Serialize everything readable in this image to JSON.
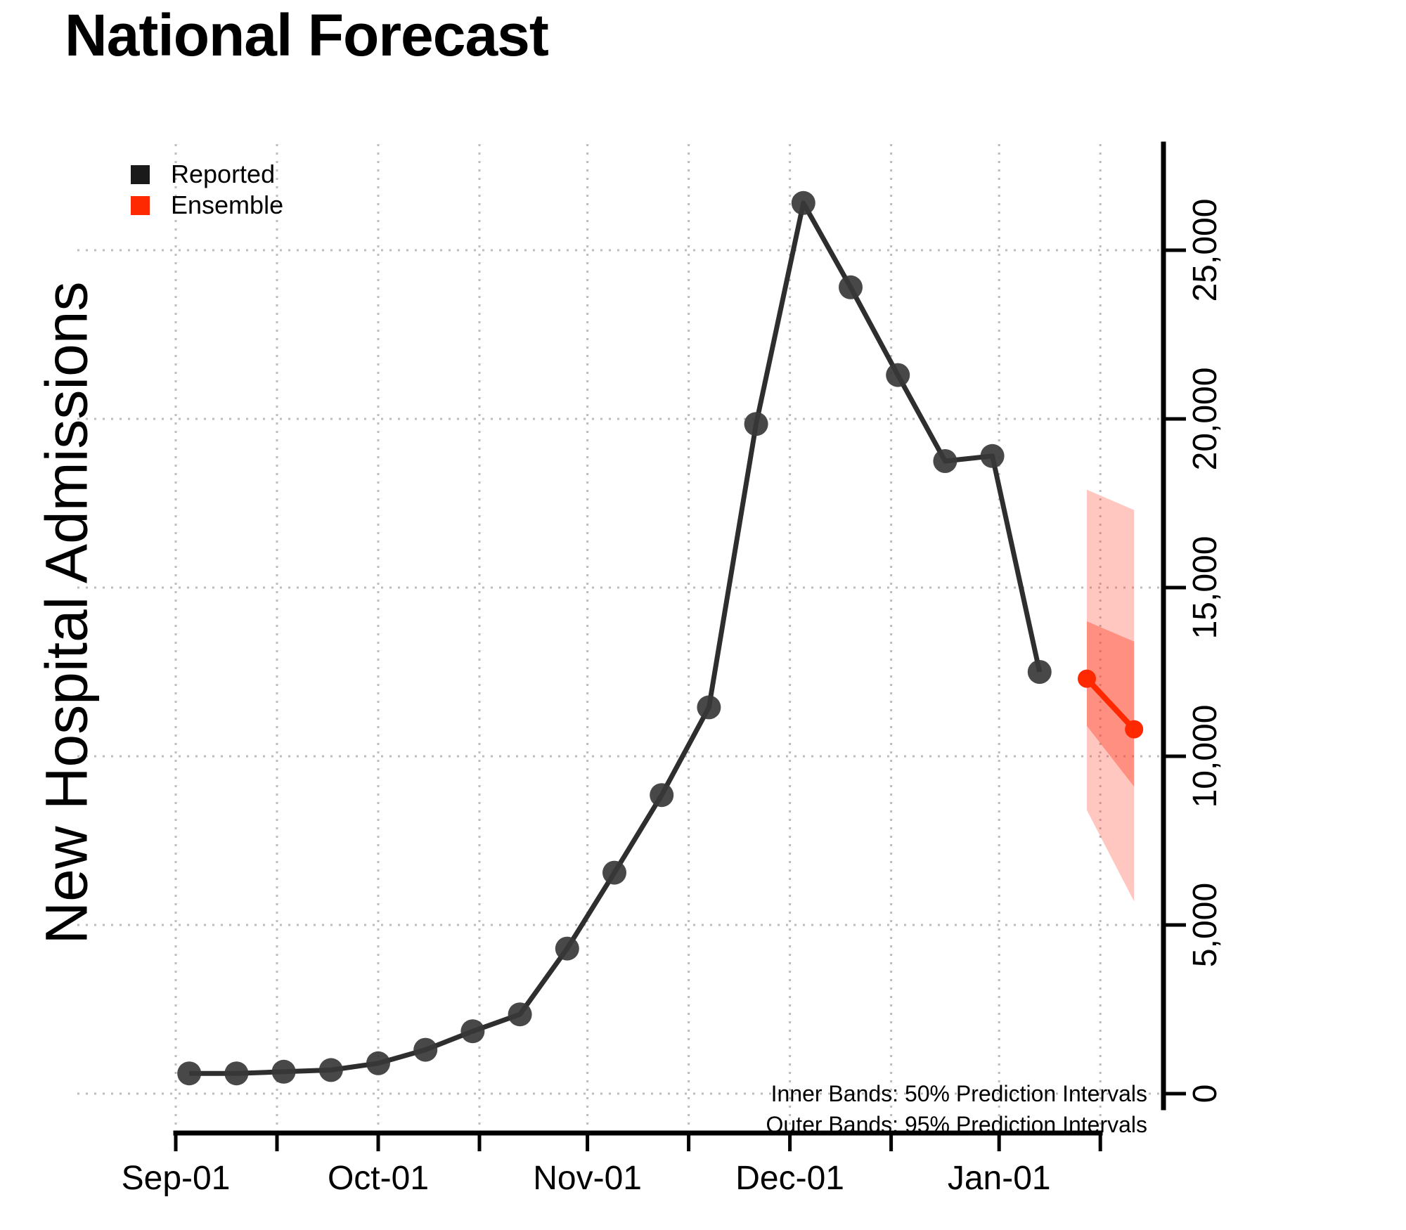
{
  "title": "National Forecast",
  "y_axis_label": "New Hospital Admissions",
  "legend": {
    "items": [
      {
        "label": "Reported",
        "color": "#1a1a1a"
      },
      {
        "label": "Ensemble",
        "color": "#fe2900"
      }
    ]
  },
  "annotations": {
    "inner": "Inner Bands: 50% Prediction Intervals",
    "outer": "Outer Bands: 95% Prediction Intervals"
  },
  "chart_data": {
    "type": "line",
    "title": "National Forecast",
    "ylabel": "New Hospital Admissions",
    "grid": true,
    "legend_position": "top-left",
    "x_range": [
      "Sep-01",
      "Jan-16"
    ],
    "ylim": [
      0,
      27500
    ],
    "y_ticks": [
      {
        "value": 0,
        "label": "0"
      },
      {
        "value": 5000,
        "label": "5,000"
      },
      {
        "value": 10000,
        "label": "10,000"
      },
      {
        "value": 15000,
        "label": "15,000"
      },
      {
        "value": 20000,
        "label": "20,000"
      },
      {
        "value": 25000,
        "label": "25,000"
      }
    ],
    "x_ticks": [
      {
        "date": "Sep-01",
        "label": "Sep-01"
      },
      {
        "date": "Sep-16",
        "label": ""
      },
      {
        "date": "Oct-01",
        "label": "Oct-01"
      },
      {
        "date": "Oct-16",
        "label": ""
      },
      {
        "date": "Nov-01",
        "label": "Nov-01"
      },
      {
        "date": "Nov-16",
        "label": ""
      },
      {
        "date": "Dec-01",
        "label": "Dec-01"
      },
      {
        "date": "Dec-16",
        "label": ""
      },
      {
        "date": "Jan-01",
        "label": "Jan-01"
      },
      {
        "date": "Jan-16",
        "label": ""
      }
    ],
    "colors": {
      "reported_line": "#2e2e2e",
      "reported_point": "#383838",
      "ensemble": "#fe2900",
      "band_outer": "rgba(255,70,45,0.30)",
      "band_inner": "rgba(252,60,35,0.40)",
      "grid": "#bcbcbc"
    },
    "series": [
      {
        "name": "Reported",
        "marker": "circle",
        "points": [
          {
            "date": "Sep-03",
            "value": 600
          },
          {
            "date": "Sep-10",
            "value": 600
          },
          {
            "date": "Sep-17",
            "value": 650
          },
          {
            "date": "Sep-24",
            "value": 700
          },
          {
            "date": "Oct-01",
            "value": 900
          },
          {
            "date": "Oct-08",
            "value": 1300
          },
          {
            "date": "Oct-15",
            "value": 1850
          },
          {
            "date": "Oct-22",
            "value": 2350
          },
          {
            "date": "Oct-29",
            "value": 4300
          },
          {
            "date": "Nov-05",
            "value": 6550
          },
          {
            "date": "Nov-12",
            "value": 8850
          },
          {
            "date": "Nov-19",
            "value": 11450
          },
          {
            "date": "Nov-26",
            "value": 19850
          },
          {
            "date": "Dec-03",
            "value": 26400
          },
          {
            "date": "Dec-10",
            "value": 23900
          },
          {
            "date": "Dec-17",
            "value": 21300
          },
          {
            "date": "Dec-24",
            "value": 18750
          },
          {
            "date": "Dec-31",
            "value": 18900
          },
          {
            "date": "Jan-07",
            "value": 12500
          }
        ]
      },
      {
        "name": "Ensemble",
        "marker": "circle",
        "points": [
          {
            "date": "Jan-14",
            "value": 12300,
            "pi50": [
              10900,
              14000
            ],
            "pi95": [
              8400,
              17900
            ]
          },
          {
            "date": "Jan-21",
            "value": 10800,
            "pi50": [
              9100,
              13400
            ],
            "pi95": [
              5700,
              17300
            ]
          }
        ]
      }
    ],
    "bands": {
      "inner_label": "50% Prediction Intervals",
      "outer_label": "95% Prediction Intervals"
    }
  }
}
